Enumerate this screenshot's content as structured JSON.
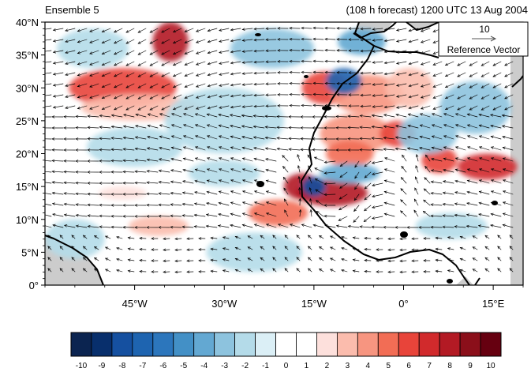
{
  "header": {
    "left_title": "Ensemble 5",
    "right_title": "(108 h forecast) 1200 UTC 13 Aug 2004"
  },
  "map": {
    "lon_range": [
      -60,
      20
    ],
    "lat_range": [
      0,
      40
    ],
    "lat_ticks": [
      "0°",
      "5°N",
      "10°N",
      "15°N",
      "20°N",
      "25°N",
      "30°N",
      "35°N",
      "40°N"
    ],
    "lon_ticks": [
      "45°W",
      "30°W",
      "15°W",
      "0°",
      "15°E"
    ],
    "land_color": "#cccccc",
    "coast_color": "#000000"
  },
  "reference_vector": {
    "value": "10",
    "label": "Reference Vector"
  },
  "colorbar": {
    "labels": [
      "-10",
      "-9",
      "-8",
      "-7",
      "-6",
      "-5",
      "-4",
      "-3",
      "-2",
      "-1",
      "0",
      "1",
      "2",
      "3",
      "4",
      "5",
      "6",
      "7",
      "8",
      "9",
      "10"
    ],
    "colors": [
      "#0b2450",
      "#082f6c",
      "#1550a0",
      "#1e64b0",
      "#2c76bc",
      "#4390c6",
      "#63a8d2",
      "#8dc3de",
      "#b4dbe9",
      "#dbeff6",
      "#ffffff",
      "#ffffff",
      "#fde0dc",
      "#fbbcad",
      "#f79580",
      "#f26d55",
      "#e8443a",
      "#d12a2c",
      "#b31a24",
      "#8b0f1a",
      "#660010"
    ]
  },
  "anomaly_features": [
    {
      "lon": -39,
      "lat": 37,
      "rx": 3,
      "ry": 3,
      "level": 8
    },
    {
      "lon": -47,
      "lat": 30,
      "rx": 9,
      "ry": 3,
      "level": 6
    },
    {
      "lon": -44,
      "lat": 27,
      "rx": 10,
      "ry": 2,
      "level": 3
    },
    {
      "lon": -13,
      "lat": 30,
      "rx": 4,
      "ry": 2.5,
      "level": 6
    },
    {
      "lon": -6,
      "lat": 29,
      "rx": 6,
      "ry": 3,
      "level": 4
    },
    {
      "lon": -8,
      "lat": 23,
      "rx": 6,
      "ry": 3,
      "level": 4
    },
    {
      "lon": -1,
      "lat": 23,
      "rx": 3,
      "ry": 2,
      "level": 6
    },
    {
      "lon": -12,
      "lat": 14,
      "rx": 6,
      "ry": 2,
      "level": 8
    },
    {
      "lon": -17,
      "lat": 15,
      "rx": 3,
      "ry": 2,
      "level": 8
    },
    {
      "lon": -21,
      "lat": 11,
      "rx": 5,
      "ry": 2,
      "level": 5
    },
    {
      "lon": -9,
      "lat": 20,
      "rx": 4,
      "ry": 2,
      "level": 5
    },
    {
      "lon": 6,
      "lat": 19,
      "rx": 3,
      "ry": 2,
      "level": 6
    },
    {
      "lon": 14,
      "lat": 18,
      "rx": 5,
      "ry": 2,
      "level": 7
    },
    {
      "lon": 1,
      "lat": 30,
      "rx": 4,
      "ry": 3,
      "level": 3
    },
    {
      "lon": -41,
      "lat": 9,
      "rx": 5,
      "ry": 1.5,
      "level": 3
    },
    {
      "lon": -47,
      "lat": 14,
      "rx": 4,
      "ry": 1,
      "level": 2
    },
    {
      "lon": -10,
      "lat": 31,
      "rx": 3,
      "ry": 2,
      "level": -7
    },
    {
      "lon": -15,
      "lat": 15,
      "rx": 2,
      "ry": 1.5,
      "level": -8
    },
    {
      "lon": -9,
      "lat": 17,
      "rx": 5,
      "ry": 1.5,
      "level": -4
    },
    {
      "lon": 4,
      "lat": 23,
      "rx": 5,
      "ry": 3,
      "level": -3
    },
    {
      "lon": 12,
      "lat": 27,
      "rx": 6,
      "ry": 4,
      "level": -3
    },
    {
      "lon": -30,
      "lat": 25,
      "rx": 10,
      "ry": 5,
      "level": -2
    },
    {
      "lon": -52,
      "lat": 36,
      "rx": 6,
      "ry": 3,
      "level": -2
    },
    {
      "lon": -22,
      "lat": 36,
      "rx": 7,
      "ry": 3,
      "level": -3
    },
    {
      "lon": -7,
      "lat": 37,
      "rx": 4,
      "ry": 2,
      "level": -4
    },
    {
      "lon": -55,
      "lat": 7,
      "rx": 5,
      "ry": 3,
      "level": -2
    },
    {
      "lon": -30,
      "lat": 17,
      "rx": 6,
      "ry": 2,
      "level": -2
    },
    {
      "lon": -45,
      "lat": 21,
      "rx": 8,
      "ry": 3,
      "level": -2
    },
    {
      "lon": -25,
      "lat": 5,
      "rx": 8,
      "ry": 3,
      "level": -2
    },
    {
      "lon": 8,
      "lat": 9,
      "rx": 6,
      "ry": 2,
      "level": -2
    }
  ]
}
